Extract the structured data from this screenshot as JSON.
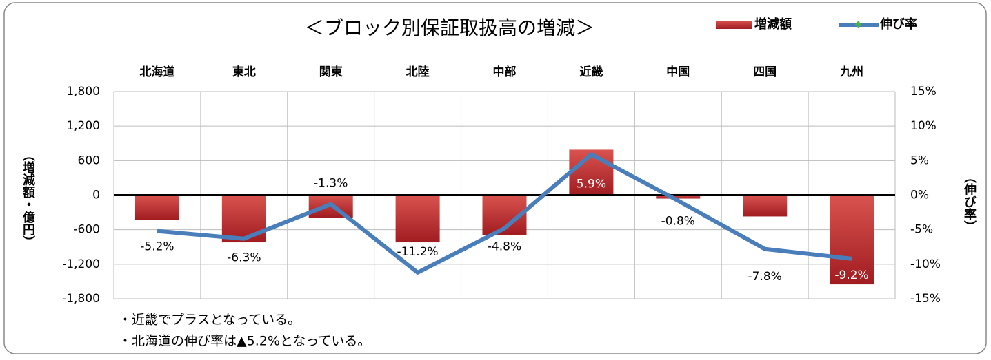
{
  "chart_data": {
    "type": "bar-line",
    "title": "＜ブロック別保証取扱高の増減＞",
    "categories": [
      "北海道",
      "東北",
      "関東",
      "北陸",
      "中部",
      "近畿",
      "中国",
      "四国",
      "九州"
    ],
    "series": [
      {
        "name": "増減額",
        "type": "bar",
        "color": "#c0262b",
        "values": [
          -430,
          -820,
          -390,
          -820,
          -690,
          790,
          -60,
          -370,
          -1550
        ]
      },
      {
        "name": "伸び率",
        "type": "line",
        "axis": "y2",
        "color": "#4a7ebb",
        "values": [
          -5.2,
          -6.3,
          -1.3,
          -11.2,
          -4.8,
          5.9,
          -0.8,
          -7.8,
          -9.2
        ],
        "value_labels": [
          "-5.2%",
          "-6.3%",
          "-1.3%",
          "-11.2%",
          "-4.8%",
          "5.9%",
          "-0.8%",
          "-7.8%",
          "-9.2%"
        ]
      }
    ],
    "ylim": [
      -1800,
      1800
    ],
    "yticks": [
      {
        "value": 1800,
        "label": "1,800"
      },
      {
        "value": 1200,
        "label": "1,200"
      },
      600,
      0,
      -600,
      {
        "value": -1200,
        "label": "-1,200"
      },
      {
        "value": -1800,
        "label": "-1,800"
      }
    ],
    "y2lim": [
      -15,
      15
    ],
    "y2ticks": [
      {
        "value": 15,
        "label": "15%"
      },
      {
        "value": 10,
        "label": "10%"
      },
      {
        "value": 5,
        "label": "5%"
      },
      {
        "value": 0,
        "label": "0%"
      },
      {
        "value": -5,
        "label": "-5%"
      },
      {
        "value": -10,
        "label": "-10%"
      },
      {
        "value": -15,
        "label": "-15%"
      }
    ],
    "ylabel": "（増減額・億円）",
    "y2label": "（伸び率）",
    "grid": true,
    "notes": [
      "・近畿でプラスとなっている。",
      "・北海道の伸び率は▲5.2%となっている。"
    ]
  }
}
